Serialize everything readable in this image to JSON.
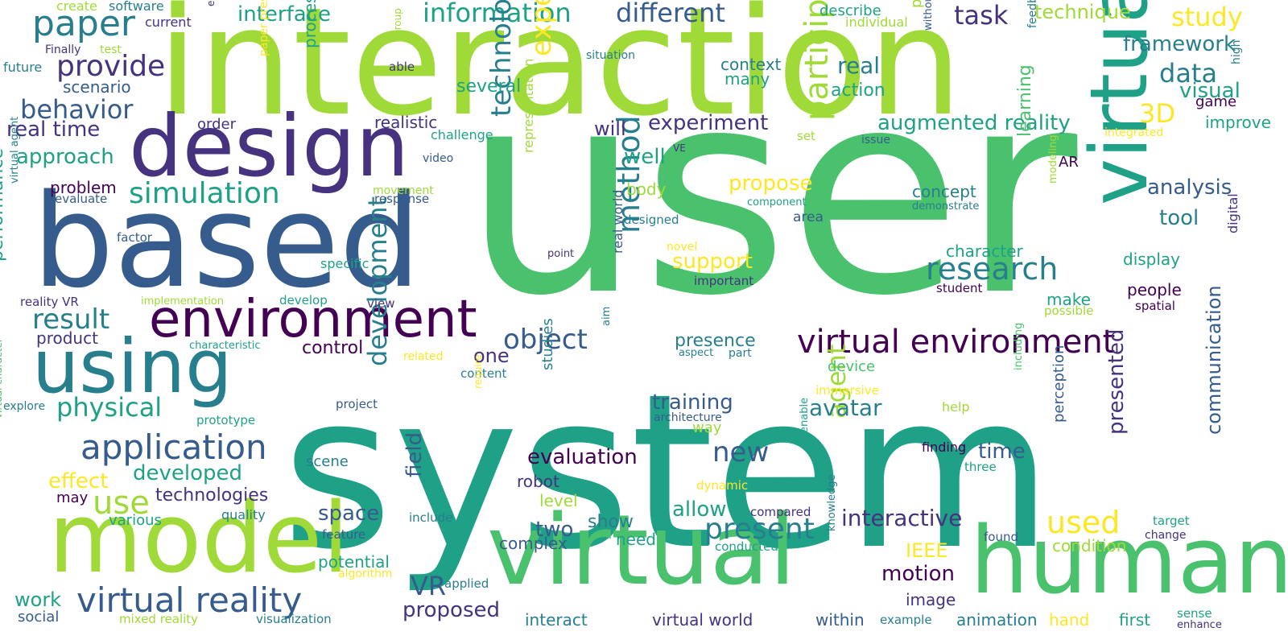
{
  "palette": {
    "background": "#ffffff",
    "colors": [
      "#440154",
      "#46327e",
      "#365c8d",
      "#277f8e",
      "#1fa187",
      "#4ac16d",
      "#a0da39",
      "#fde725"
    ]
  },
  "words": [
    {
      "text": "system"
    },
    {
      "text": "user"
    },
    {
      "text": "interaction"
    },
    {
      "text": "based"
    },
    {
      "text": "design"
    },
    {
      "text": "model"
    },
    {
      "text": "virtual"
    },
    {
      "text": "human"
    },
    {
      "text": "virtual"
    },
    {
      "text": "using"
    },
    {
      "text": "environment"
    },
    {
      "text": "human"
    },
    {
      "text": "virtual reality"
    },
    {
      "text": "application"
    },
    {
      "text": "virtual environment"
    },
    {
      "text": "paper"
    },
    {
      "text": "simulation"
    },
    {
      "text": "research"
    },
    {
      "text": "provide"
    },
    {
      "text": "information"
    },
    {
      "text": "different"
    },
    {
      "text": "behavior"
    },
    {
      "text": "study"
    },
    {
      "text": "task"
    },
    {
      "text": "data"
    },
    {
      "text": "framework"
    },
    {
      "text": "method"
    },
    {
      "text": "participant"
    },
    {
      "text": "technology"
    },
    {
      "text": "experience"
    },
    {
      "text": "present"
    },
    {
      "text": "used"
    },
    {
      "text": "object"
    },
    {
      "text": "result"
    },
    {
      "text": "use"
    },
    {
      "text": "physical"
    },
    {
      "text": "augmented reality"
    },
    {
      "text": "experiment"
    },
    {
      "text": "development"
    },
    {
      "text": "agent"
    },
    {
      "text": "new"
    },
    {
      "text": "interactive"
    },
    {
      "text": "evaluation"
    },
    {
      "text": "training"
    },
    {
      "text": "avatar"
    },
    {
      "text": "VR"
    },
    {
      "text": "real time"
    },
    {
      "text": "approach"
    },
    {
      "text": "interface"
    },
    {
      "text": "communication"
    },
    {
      "text": "presented"
    },
    {
      "text": "3D"
    },
    {
      "text": "technique"
    },
    {
      "text": "analysis"
    },
    {
      "text": "tool"
    },
    {
      "text": "support"
    },
    {
      "text": "propose"
    },
    {
      "text": "real"
    },
    {
      "text": "visual"
    },
    {
      "text": "developed"
    },
    {
      "text": "effect"
    },
    {
      "text": "space"
    },
    {
      "text": "control"
    },
    {
      "text": "allow"
    },
    {
      "text": "motion"
    },
    {
      "text": "proposed"
    },
    {
      "text": "time"
    },
    {
      "text": "two"
    },
    {
      "text": "show"
    },
    {
      "text": "work"
    },
    {
      "text": "field"
    },
    {
      "text": "performance"
    },
    {
      "text": "well"
    },
    {
      "text": "will"
    },
    {
      "text": "one"
    },
    {
      "text": "IEEE"
    },
    {
      "text": "learning"
    },
    {
      "text": "presence"
    },
    {
      "text": "scenario"
    },
    {
      "text": "problem"
    },
    {
      "text": "product"
    },
    {
      "text": "technologies"
    },
    {
      "text": "several"
    },
    {
      "text": "realistic"
    },
    {
      "text": "action"
    },
    {
      "text": "context"
    },
    {
      "text": "many"
    },
    {
      "text": "process"
    },
    {
      "text": "character"
    },
    {
      "text": "concept"
    },
    {
      "text": "display"
    },
    {
      "text": "people"
    },
    {
      "text": "make"
    },
    {
      "text": "body"
    },
    {
      "text": "game"
    },
    {
      "text": "improve"
    },
    {
      "text": "potential"
    },
    {
      "text": "complex"
    },
    {
      "text": "interact"
    },
    {
      "text": "virtual world"
    },
    {
      "text": "within"
    },
    {
      "text": "animation"
    },
    {
      "text": "first"
    },
    {
      "text": "image"
    },
    {
      "text": "condition"
    },
    {
      "text": "robot"
    },
    {
      "text": "level"
    },
    {
      "text": "need"
    },
    {
      "text": "scene"
    },
    {
      "text": "various"
    },
    {
      "text": "may"
    },
    {
      "text": "social"
    },
    {
      "text": "order"
    },
    {
      "text": "describe"
    },
    {
      "text": "create"
    },
    {
      "text": "software"
    },
    {
      "text": "current"
    },
    {
      "text": "Finally"
    },
    {
      "text": "test"
    },
    {
      "text": "future"
    },
    {
      "text": "able"
    },
    {
      "text": "ergonomic"
    },
    {
      "text": "group"
    },
    {
      "text": "individual"
    },
    {
      "text": "platform"
    },
    {
      "text": "without"
    },
    {
      "text": "feedback"
    },
    {
      "text": "high"
    },
    {
      "text": "situation"
    },
    {
      "text": "challenge"
    },
    {
      "text": "paper presents"
    },
    {
      "text": "VE"
    },
    {
      "text": "video"
    },
    {
      "text": "set"
    },
    {
      "text": "issue"
    },
    {
      "text": "integrated"
    },
    {
      "text": "AR"
    },
    {
      "text": "movement"
    },
    {
      "text": "response"
    },
    {
      "text": "evaluate"
    },
    {
      "text": "virtual agent"
    },
    {
      "text": "component"
    },
    {
      "text": "demonstrate"
    },
    {
      "text": "designed"
    },
    {
      "text": "area"
    },
    {
      "text": "modeling"
    },
    {
      "text": "factor"
    },
    {
      "text": "novel"
    },
    {
      "text": "point"
    },
    {
      "text": "representation"
    },
    {
      "text": "specific"
    },
    {
      "text": "important"
    },
    {
      "text": "student"
    },
    {
      "text": "spatial"
    },
    {
      "text": "digital"
    },
    {
      "text": "possible"
    },
    {
      "text": "implementation"
    },
    {
      "text": "develop"
    },
    {
      "text": "view"
    },
    {
      "text": "reality VR"
    },
    {
      "text": "real world"
    },
    {
      "text": "characteristic"
    },
    {
      "text": "aim"
    },
    {
      "text": "aspect"
    },
    {
      "text": "part"
    },
    {
      "text": "related"
    },
    {
      "text": "content"
    },
    {
      "text": "device"
    },
    {
      "text": "immersive"
    },
    {
      "text": "explore"
    },
    {
      "text": "project"
    },
    {
      "text": "require"
    },
    {
      "text": "studies"
    },
    {
      "text": "architecture"
    },
    {
      "text": "help"
    },
    {
      "text": "way"
    },
    {
      "text": "including"
    },
    {
      "text": "prototype"
    },
    {
      "text": "finding"
    },
    {
      "text": "three"
    },
    {
      "text": "enable"
    },
    {
      "text": "perception"
    },
    {
      "text": "virtual character"
    },
    {
      "text": "dynamic"
    },
    {
      "text": "quality"
    },
    {
      "text": "include"
    },
    {
      "text": "feature"
    },
    {
      "text": "compared"
    },
    {
      "text": "knowledge"
    },
    {
      "text": "conducted"
    },
    {
      "text": "found"
    },
    {
      "text": "change"
    },
    {
      "text": "target"
    },
    {
      "text": "algorithm"
    },
    {
      "text": "applied"
    },
    {
      "text": "mixed reality"
    },
    {
      "text": "visualization"
    },
    {
      "text": "example"
    },
    {
      "text": "hand"
    },
    {
      "text": "sense"
    },
    {
      "text": "enhance"
    }
  ]
}
